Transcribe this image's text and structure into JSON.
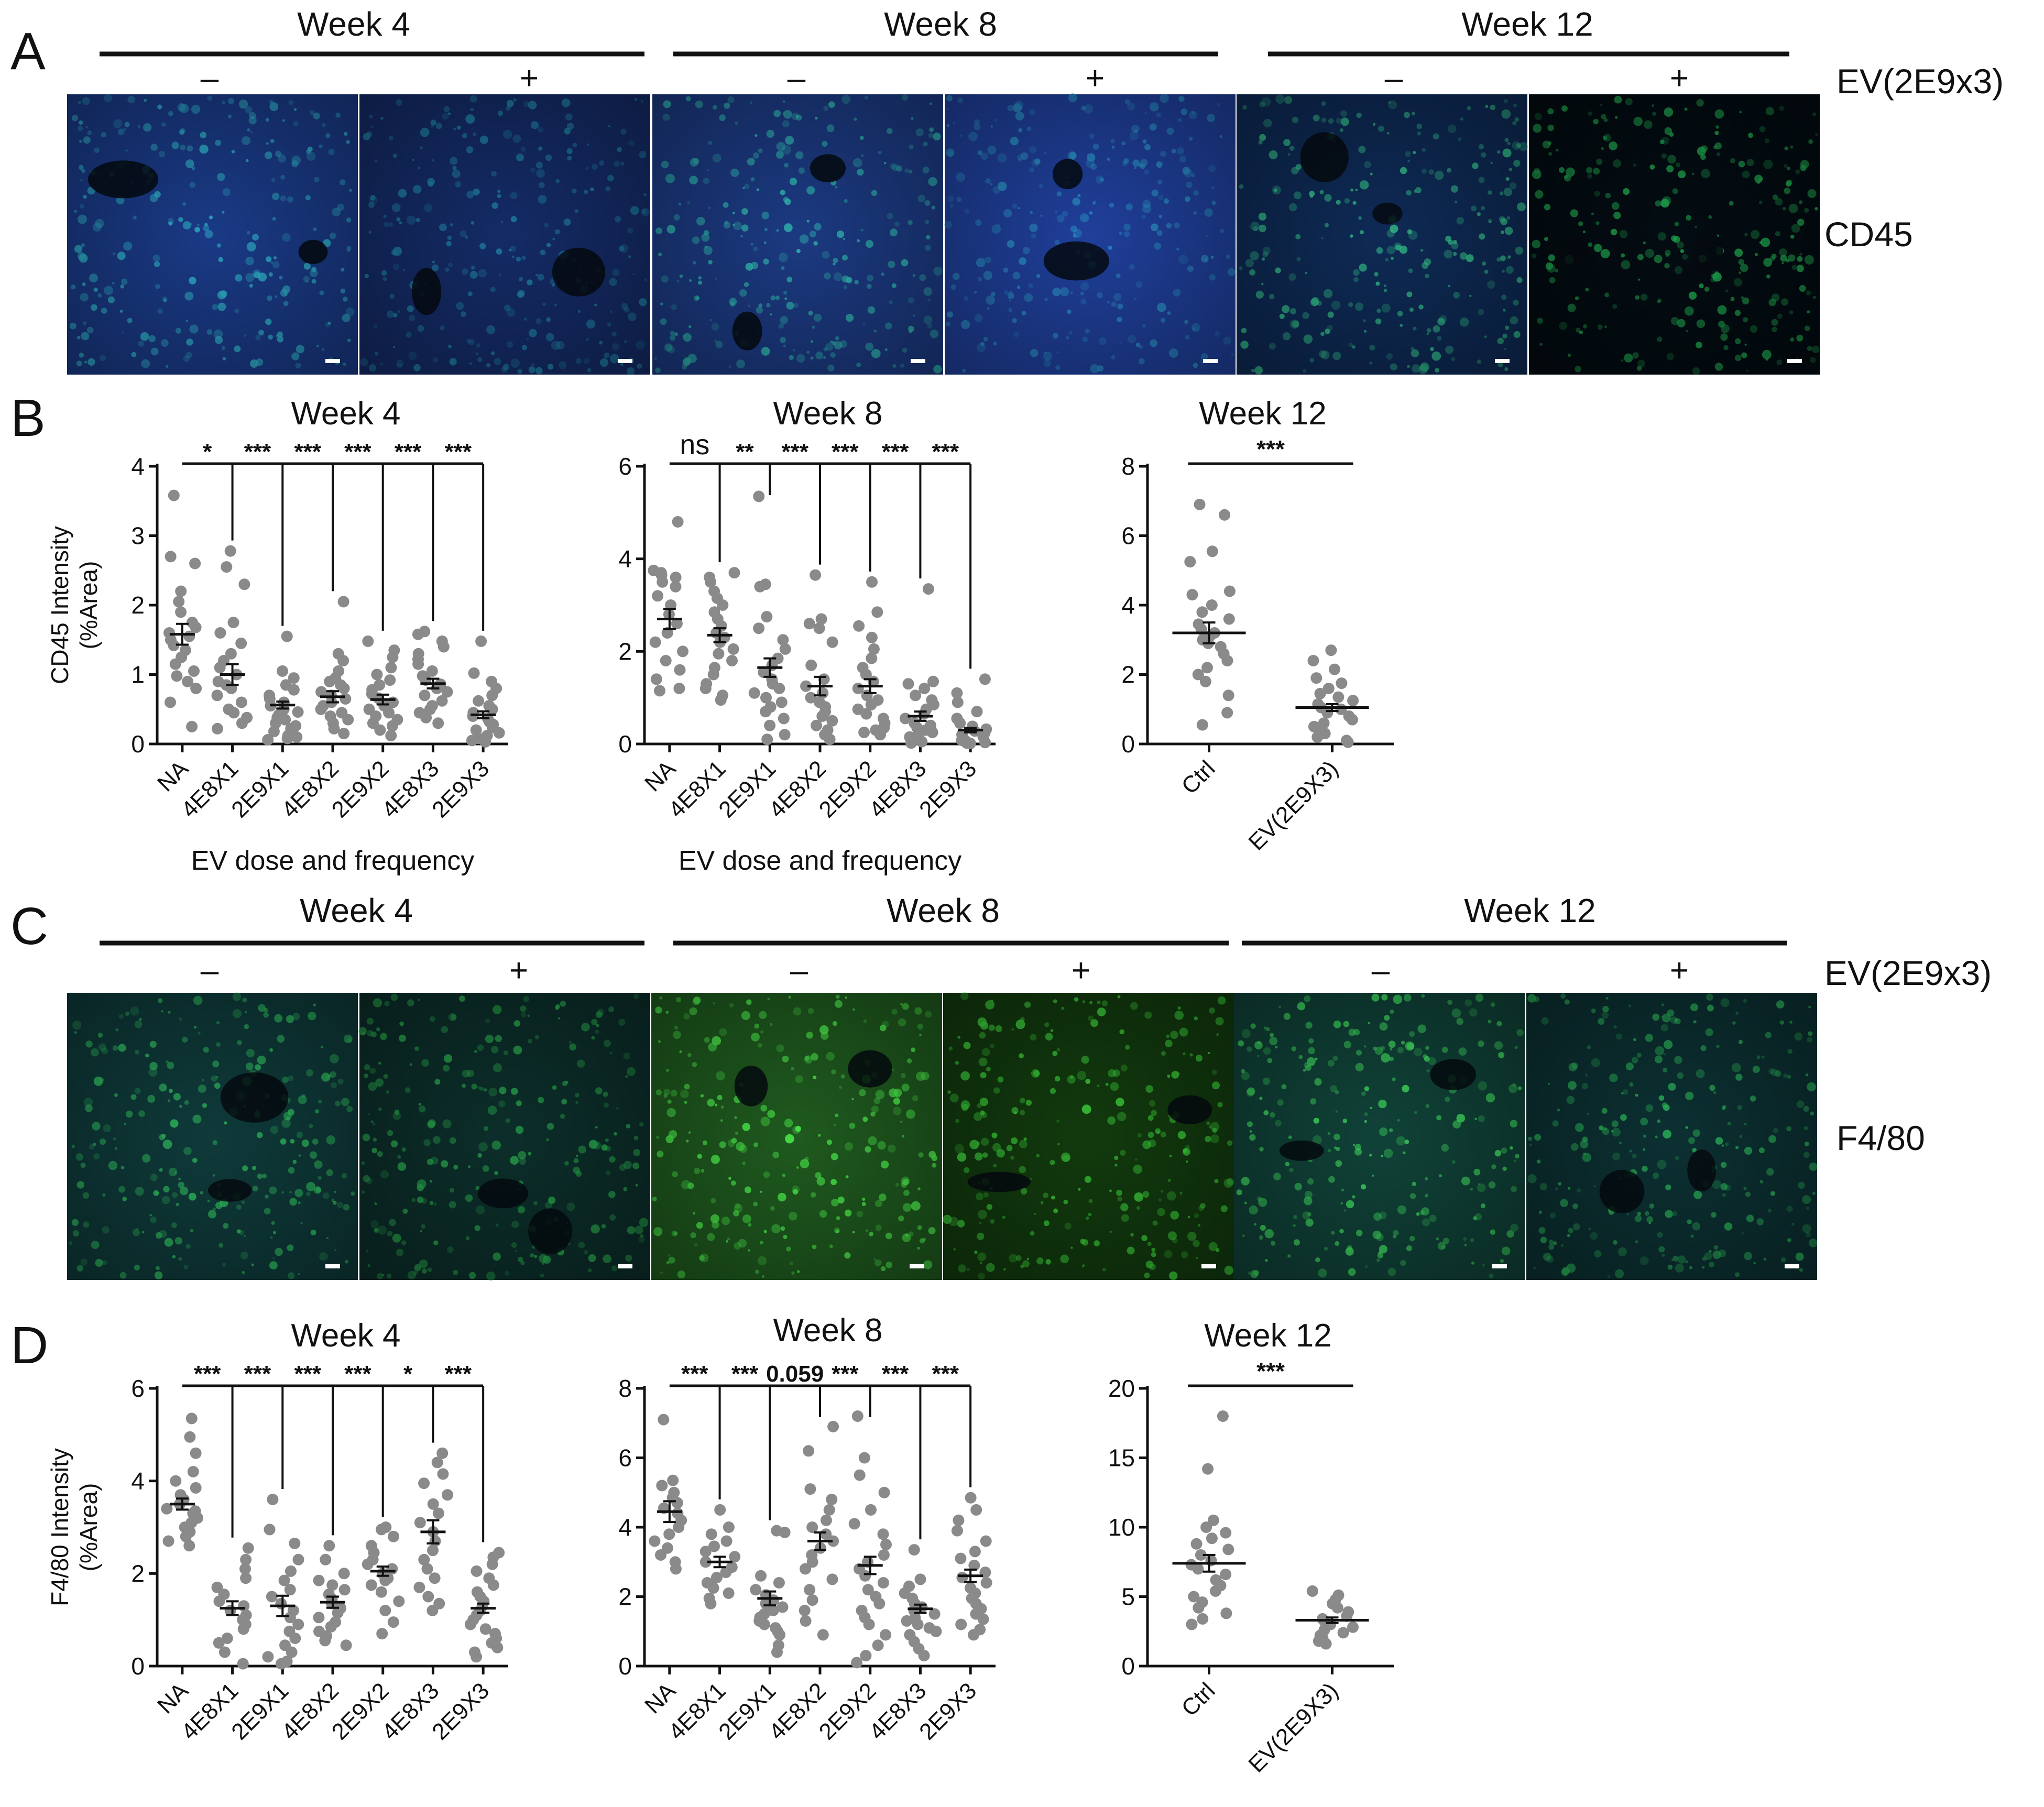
{
  "figure": {
    "panel_letters": [
      "A",
      "B",
      "C",
      "D"
    ],
    "week_headers": [
      "Week 4",
      "Week 8",
      "Week 12"
    ],
    "treatment_signs": [
      "–",
      "+",
      "–",
      "+",
      "–",
      "+"
    ],
    "treatment_label": "EV(2E9x3)",
    "row_a_stain": "CD45",
    "row_c_stain": "F4/80",
    "colors": {
      "point": "#8a8a8a",
      "mean_bar": "#111111",
      "axis": "#111111"
    }
  },
  "image_rows": [
    {
      "panel": "A",
      "stain": "CD45",
      "tiles": [
        {
          "week": "Week 4",
          "treatment": "–",
          "tone": "#1a3a86",
          "dots": "#2fb0c8"
        },
        {
          "week": "Week 4",
          "treatment": "+",
          "tone": "#142b66",
          "dots": "#1f7fa5"
        },
        {
          "week": "Week 8",
          "treatment": "–",
          "tone": "#1c3a82",
          "dots": "#2fb8b0"
        },
        {
          "week": "Week 8",
          "treatment": "+",
          "tone": "#1f3f9a",
          "dots": "#2a8fc4"
        },
        {
          "week": "Week 12",
          "treatment": "–",
          "tone": "#0e2a55",
          "dots": "#33c08a"
        },
        {
          "week": "Week 12",
          "treatment": "+",
          "tone": "#030c12",
          "dots": "#1fa34d"
        }
      ]
    },
    {
      "panel": "C",
      "stain": "F4/80",
      "tiles": [
        {
          "week": "Week 4",
          "treatment": "–",
          "tone": "#0f3a3a",
          "dots": "#2fbf5f"
        },
        {
          "week": "Week 4",
          "treatment": "+",
          "tone": "#0c2e2a",
          "dots": "#28a84c"
        },
        {
          "week": "Week 8",
          "treatment": "–",
          "tone": "#1f5a1f",
          "dots": "#4cf04c"
        },
        {
          "week": "Week 8",
          "treatment": "+",
          "tone": "#123a0e",
          "dots": "#3cd43c"
        },
        {
          "week": "Week 12",
          "treatment": "–",
          "tone": "#104238",
          "dots": "#40e060"
        },
        {
          "week": "Week 12",
          "treatment": "+",
          "tone": "#0c3032",
          "dots": "#2ab458"
        }
      ]
    }
  ],
  "chart_data": [
    {
      "panel": "B",
      "type": "scatter",
      "title": "Week 4",
      "ylabel": "CD45 Intensity\n(%Area)",
      "xlabel": "EV dose and frequency",
      "ylim": [
        0,
        4
      ],
      "yticks": [
        0,
        1,
        2,
        3,
        4
      ],
      "categories": [
        "NA",
        "4E8X1",
        "2E9X1",
        "4E8X2",
        "2E9X2",
        "4E8X3",
        "2E9X3"
      ],
      "means": [
        1.58,
        1.0,
        0.56,
        0.68,
        0.64,
        0.87,
        0.42
      ],
      "sems": [
        0.15,
        0.15,
        0.05,
        0.08,
        0.07,
        0.07,
        0.05
      ],
      "points": [
        [
          3.58,
          2.7,
          2.6,
          2.2,
          2.05,
          1.9,
          1.75,
          1.68,
          1.6,
          1.55,
          1.5,
          1.42,
          1.35,
          1.25,
          1.15,
          1.05,
          0.98,
          0.9,
          0.8,
          0.6,
          0.25
        ],
        [
          2.78,
          2.55,
          2.3,
          1.75,
          1.6,
          1.45,
          1.3,
          1.2,
          1.1,
          1.0,
          0.9,
          0.85,
          0.8,
          0.7,
          0.6,
          0.5,
          0.45,
          0.38,
          0.3,
          0.22
        ],
        [
          1.55,
          1.05,
          0.95,
          0.85,
          0.78,
          0.7,
          0.65,
          0.6,
          0.55,
          0.5,
          0.46,
          0.42,
          0.38,
          0.35,
          0.3,
          0.26,
          0.22,
          0.18,
          0.12,
          0.1,
          0.08,
          0.06
        ],
        [
          2.05,
          1.3,
          1.2,
          1.05,
          0.95,
          0.9,
          0.85,
          0.8,
          0.75,
          0.7,
          0.65,
          0.6,
          0.55,
          0.5,
          0.45,
          0.4,
          0.35,
          0.3,
          0.22,
          0.15
        ],
        [
          1.48,
          1.35,
          1.25,
          1.1,
          1.0,
          0.92,
          0.85,
          0.78,
          0.72,
          0.66,
          0.6,
          0.55,
          0.5,
          0.45,
          0.4,
          0.35,
          0.3,
          0.26,
          0.2,
          0.12
        ],
        [
          1.62,
          1.58,
          1.48,
          1.4,
          1.3,
          1.22,
          1.15,
          1.05,
          0.98,
          0.92,
          0.86,
          0.8,
          0.75,
          0.7,
          0.62,
          0.55,
          0.5,
          0.45,
          0.38,
          0.3
        ],
        [
          1.48,
          1.02,
          0.9,
          0.8,
          0.7,
          0.62,
          0.55,
          0.5,
          0.45,
          0.4,
          0.36,
          0.32,
          0.28,
          0.24,
          0.2,
          0.16,
          0.12,
          0.08,
          0.05,
          0.03
        ]
      ],
      "significance": [
        "*",
        "***",
        "***",
        "***",
        "***",
        "***"
      ]
    },
    {
      "panel": "B",
      "type": "scatter",
      "title": "Week 8",
      "ylabel": "",
      "xlabel": "EV dose and frequency",
      "ylim": [
        0,
        6
      ],
      "yticks": [
        0,
        2,
        4,
        6
      ],
      "categories": [
        "NA",
        "4E8X1",
        "2E9X1",
        "4E8X2",
        "2E9X2",
        "4E8X3",
        "2E9X3"
      ],
      "means": [
        2.7,
        2.35,
        1.65,
        1.25,
        1.25,
        0.6,
        0.3
      ],
      "sems": [
        0.22,
        0.15,
        0.2,
        0.2,
        0.15,
        0.1,
        0.05
      ],
      "points": [
        [
          4.8,
          3.75,
          3.7,
          3.65,
          3.6,
          3.5,
          3.4,
          3.2,
          3.0,
          2.8,
          2.6,
          2.4,
          2.2,
          2.0,
          1.8,
          1.6,
          1.4,
          1.2,
          1.15
        ],
        [
          3.7,
          3.6,
          3.5,
          3.3,
          3.15,
          3.0,
          2.85,
          2.7,
          2.55,
          2.4,
          2.3,
          2.2,
          2.05,
          1.95,
          1.8,
          1.65,
          1.5,
          1.3,
          1.2,
          1.05,
          0.95
        ],
        [
          5.35,
          3.45,
          3.4,
          2.75,
          2.5,
          2.25,
          2.05,
          1.85,
          1.7,
          1.55,
          1.4,
          1.3,
          1.2,
          1.1,
          1.0,
          0.9,
          0.8,
          0.7,
          0.55,
          0.4,
          0.2,
          0.1
        ],
        [
          3.65,
          2.7,
          2.6,
          2.5,
          2.2,
          1.7,
          1.4,
          1.25,
          1.1,
          1.0,
          0.9,
          0.8,
          0.7,
          0.6,
          0.5,
          0.4,
          0.3,
          0.2,
          0.1
        ],
        [
          3.5,
          2.85,
          2.55,
          2.3,
          2.05,
          1.85,
          1.65,
          1.5,
          1.35,
          1.2,
          1.05,
          0.95,
          0.85,
          0.75,
          0.65,
          0.55,
          0.45,
          0.35,
          0.3,
          0.25,
          0.2
        ],
        [
          3.35,
          1.35,
          1.3,
          1.2,
          1.05,
          0.95,
          0.85,
          0.75,
          0.65,
          0.55,
          0.45,
          0.4,
          0.35,
          0.3,
          0.25,
          0.2,
          0.15,
          0.1,
          0.05,
          0.02
        ],
        [
          1.4,
          1.1,
          0.9,
          0.7,
          0.55,
          0.45,
          0.38,
          0.32,
          0.28,
          0.24,
          0.2,
          0.16,
          0.12,
          0.08,
          0.05,
          0.03,
          0.02,
          0.01
        ]
      ],
      "significance": [
        "ns",
        "**",
        "***",
        "***",
        "***",
        "***"
      ]
    },
    {
      "panel": "B",
      "type": "scatter",
      "title": "Week 12",
      "ylabel": "",
      "xlabel": "",
      "ylim": [
        0,
        8
      ],
      "yticks": [
        0,
        2,
        4,
        6,
        8
      ],
      "categories": [
        "Ctrl",
        "EV(2E9X3)"
      ],
      "means": [
        3.2,
        1.05
      ],
      "sems": [
        0.3,
        0.1
      ],
      "points": [
        [
          6.9,
          6.6,
          5.55,
          5.25,
          4.4,
          4.3,
          4.0,
          3.8,
          3.6,
          3.45,
          3.3,
          3.2,
          3.1,
          3.0,
          2.9,
          2.8,
          2.6,
          2.4,
          2.2,
          2.0,
          1.8,
          1.4,
          0.9,
          0.55
        ],
        [
          2.7,
          2.4,
          2.15,
          1.9,
          1.75,
          1.6,
          1.45,
          1.35,
          1.25,
          1.15,
          1.05,
          1.0,
          0.9,
          0.8,
          0.7,
          0.6,
          0.5,
          0.4,
          0.3,
          0.2,
          0.1,
          0.05
        ]
      ],
      "significance": [
        "***"
      ]
    },
    {
      "panel": "D",
      "type": "scatter",
      "title": "Week 4",
      "ylabel": "F4/80 Intensity\n(%Area)",
      "xlabel": "",
      "ylim": [
        0,
        6
      ],
      "yticks": [
        0,
        2,
        4,
        6
      ],
      "categories": [
        "NA",
        "4E8X1",
        "2E9X1",
        "4E8X2",
        "2E9X2",
        "4E8X3",
        "2E9X3"
      ],
      "means": [
        3.5,
        1.25,
        1.3,
        1.38,
        2.05,
        2.9,
        1.25
      ],
      "sems": [
        0.12,
        0.15,
        0.22,
        0.12,
        0.1,
        0.25,
        0.1
      ],
      "points": [
        [
          5.35,
          4.95,
          4.6,
          4.2,
          4.0,
          3.85,
          3.7,
          3.6,
          3.5,
          3.4,
          3.35,
          3.3,
          3.2,
          3.1,
          3.0,
          2.9,
          2.8,
          2.7,
          2.6
        ],
        [
          2.55,
          2.3,
          2.1,
          1.9,
          1.7,
          1.55,
          1.4,
          1.3,
          1.2,
          1.1,
          1.0,
          0.9,
          0.8,
          0.6,
          0.5,
          0.3,
          0.05
        ],
        [
          3.6,
          2.95,
          2.65,
          2.3,
          2.05,
          1.85,
          1.65,
          1.5,
          1.35,
          1.2,
          1.05,
          0.9,
          0.75,
          0.6,
          0.45,
          0.3,
          0.2,
          0.1,
          0.05
        ],
        [
          2.6,
          2.3,
          2.0,
          1.85,
          1.75,
          1.65,
          1.55,
          1.45,
          1.35,
          1.25,
          1.15,
          1.05,
          0.95,
          0.85,
          0.75,
          0.65,
          0.55,
          0.45
        ],
        [
          3.0,
          2.95,
          2.8,
          2.6,
          2.45,
          2.3,
          2.2,
          2.1,
          2.0,
          1.9,
          1.85,
          1.75,
          1.6,
          1.4,
          1.2,
          0.95,
          0.7
        ],
        [
          4.6,
          4.4,
          4.15,
          3.95,
          3.7,
          3.5,
          3.3,
          3.1,
          2.9,
          2.7,
          2.5,
          2.3,
          2.1,
          1.9,
          1.7,
          1.5,
          1.35,
          1.2
        ],
        [
          2.45,
          2.35,
          2.2,
          2.05,
          1.9,
          1.75,
          1.6,
          1.5,
          1.4,
          1.3,
          1.2,
          1.1,
          1.0,
          0.9,
          0.8,
          0.7,
          0.6,
          0.5,
          0.4,
          0.3,
          0.2
        ]
      ],
      "significance": [
        "***",
        "***",
        "***",
        "***",
        "*",
        "***"
      ]
    },
    {
      "panel": "D",
      "type": "scatter",
      "title": "Week 8",
      "ylabel": "",
      "xlabel": "",
      "ylim": [
        0,
        8
      ],
      "yticks": [
        0,
        2,
        4,
        6,
        8
      ],
      "categories": [
        "NA",
        "4E8X1",
        "2E9X1",
        "4E8X2",
        "2E9X2",
        "4E8X3",
        "2E9X3"
      ],
      "means": [
        4.45,
        3.0,
        1.95,
        3.6,
        2.9,
        1.65,
        2.6
      ],
      "sems": [
        0.3,
        0.15,
        0.2,
        0.25,
        0.25,
        0.12,
        0.18
      ],
      "points": [
        [
          7.1,
          5.35,
          5.2,
          5.0,
          4.85,
          4.7,
          4.55,
          4.4,
          4.2,
          4.0,
          3.8,
          3.6,
          3.4,
          3.2,
          3.0,
          2.8
        ],
        [
          4.5,
          4.0,
          3.8,
          3.6,
          3.45,
          3.3,
          3.15,
          3.0,
          2.85,
          2.7,
          2.55,
          2.4,
          2.25,
          2.1,
          1.95,
          1.8
        ],
        [
          3.9,
          3.85,
          2.6,
          2.4,
          2.2,
          2.05,
          1.9,
          1.8,
          1.7,
          1.6,
          1.5,
          1.4,
          1.3,
          1.2,
          1.1,
          1.0,
          0.9,
          0.6,
          0.4
        ],
        [
          6.9,
          6.2,
          5.1,
          4.8,
          4.5,
          4.2,
          4.0,
          3.8,
          3.6,
          3.4,
          3.2,
          3.0,
          2.8,
          2.5,
          2.2,
          1.9,
          1.6,
          1.3,
          0.9
        ],
        [
          7.2,
          6.0,
          5.5,
          5.0,
          4.5,
          4.1,
          3.8,
          3.5,
          3.2,
          3.0,
          2.8,
          2.6,
          2.4,
          2.2,
          2.0,
          1.8,
          1.6,
          1.4,
          1.2,
          0.9,
          0.6,
          0.3,
          0.1
        ],
        [
          3.35,
          2.5,
          2.3,
          2.1,
          1.95,
          1.8,
          1.7,
          1.6,
          1.5,
          1.4,
          1.3,
          1.2,
          1.1,
          1.0,
          0.9,
          0.7,
          0.5,
          0.3
        ],
        [
          4.85,
          4.5,
          4.2,
          3.9,
          3.6,
          3.3,
          3.1,
          2.9,
          2.7,
          2.55,
          2.4,
          2.25,
          2.1,
          1.95,
          1.8,
          1.65,
          1.5,
          1.35,
          1.2,
          1.05,
          0.9
        ]
      ],
      "significance": [
        "***",
        "***",
        "0.059",
        "***",
        "***",
        "***"
      ]
    },
    {
      "panel": "D",
      "type": "scatter",
      "title": "Week 12",
      "ylabel": "",
      "xlabel": "",
      "ylim": [
        0,
        20
      ],
      "yticks": [
        0,
        5,
        10,
        15,
        20
      ],
      "categories": [
        "Ctrl",
        "EV(2E9X3)"
      ],
      "means": [
        7.4,
        3.3
      ],
      "sems": [
        0.6,
        0.2
      ],
      "points": [
        [
          18.0,
          14.2,
          10.5,
          10.0,
          9.6,
          9.2,
          8.8,
          8.4,
          8.0,
          7.6,
          7.3,
          7.0,
          6.6,
          6.2,
          5.8,
          5.4,
          5.0,
          4.6,
          4.2,
          3.8,
          3.4,
          3.0
        ],
        [
          5.4,
          5.1,
          4.8,
          4.5,
          4.2,
          3.9,
          3.6,
          3.4,
          3.2,
          3.0,
          2.8,
          2.6,
          2.4,
          2.2,
          2.0,
          1.8,
          1.6
        ]
      ],
      "significance": [
        "***"
      ]
    }
  ]
}
